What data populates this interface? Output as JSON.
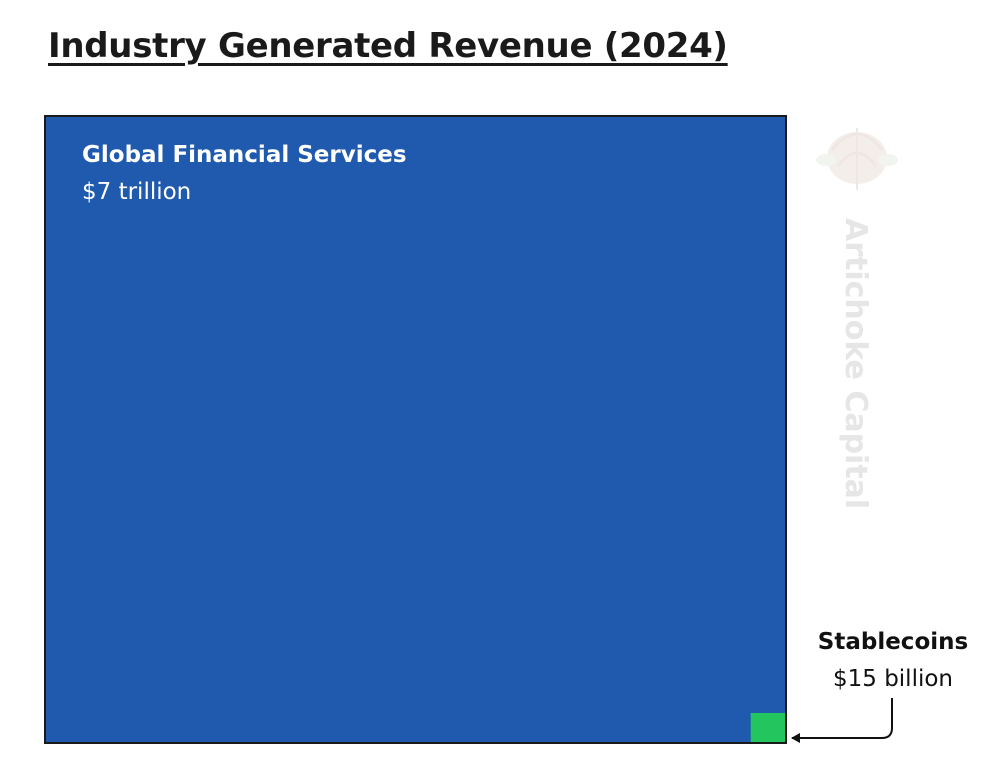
{
  "chart_data": {
    "type": "area-comparison",
    "title": "Industry Generated Revenue (2024)",
    "unit": "USD",
    "items": [
      {
        "category": "Global Financial Services",
        "value_label": "$7 trillion",
        "value": 7000000000000,
        "color": "#1f5aaf"
      },
      {
        "category": "Stablecoins",
        "value_label": "$15 billion",
        "value": 15000000000,
        "color": "#22c55e"
      }
    ]
  },
  "watermark": {
    "text": "Artichoke Capital"
  }
}
